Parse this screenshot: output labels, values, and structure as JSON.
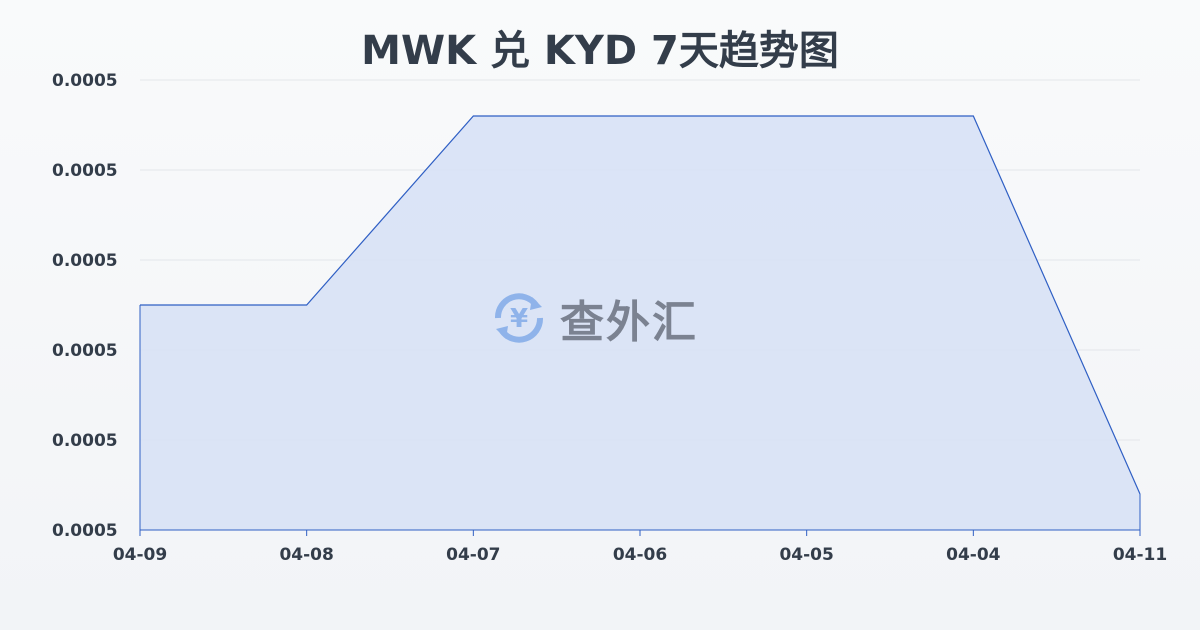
{
  "chart_data": {
    "type": "area",
    "title": "MWK 兑 KYD 7天趋势图",
    "xlabel": "",
    "ylabel": "",
    "categories": [
      "04-09",
      "04-08",
      "04-07",
      "04-06",
      "04-05",
      "04-04",
      "04-11"
    ],
    "values": [
      0.000501,
      0.000501,
      0.0005052,
      0.0005052,
      0.0005052,
      0.0005052,
      0.0004968
    ],
    "ylim": [
      0.000496,
      0.000506
    ],
    "y_ticks": [
      0.000496,
      0.000498,
      0.0005,
      0.000502,
      0.000504,
      0.000506
    ],
    "y_tick_labels": [
      "0.0005",
      "0.0005",
      "0.0005",
      "0.0005",
      "0.0005",
      "0.0005"
    ],
    "grid": true,
    "colors": {
      "line": "#2f5fc4",
      "fill": "#d6e1f6",
      "grid": "#e3e6ea",
      "text": "#333d4a"
    }
  },
  "watermark": {
    "text": "查外汇",
    "icon": "yen-exchange-icon"
  }
}
